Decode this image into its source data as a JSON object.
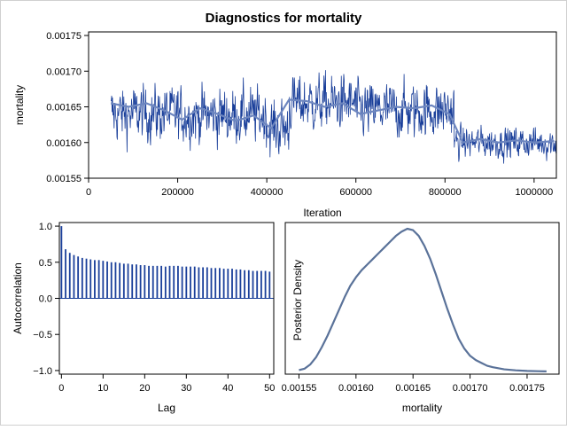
{
  "title": "Diagnostics for mortality",
  "colors": {
    "trace": "#1a3f9a",
    "trace_smooth": "#6d86bf",
    "acf_bar": "#1a3f9a",
    "density": "#5a7299",
    "frame": "#000000"
  },
  "chart_data": [
    {
      "type": "line",
      "name": "trace-plot",
      "xlabel": "Iteration",
      "ylabel": "mortality",
      "xlim": [
        0,
        1050000
      ],
      "ylim": [
        0.00155,
        0.001755
      ],
      "xticks": [
        0,
        200000,
        400000,
        600000,
        800000,
        1000000
      ],
      "xtick_labels": [
        "0",
        "200000",
        "400000",
        "600000",
        "800000",
        "1000000"
      ],
      "yticks": [
        0.00155,
        0.0016,
        0.00165,
        0.0017,
        0.00175
      ],
      "ytick_labels": [
        "0.00155",
        "0.00160",
        "0.00165",
        "0.00170",
        "0.00175"
      ],
      "segments": [
        {
          "from_iter": 50000,
          "to_iter": 200000,
          "mean": 0.00164
        },
        {
          "from_iter": 200000,
          "to_iter": 400000,
          "mean": 0.001638
        },
        {
          "from_iter": 400000,
          "to_iter": 450000,
          "mean": 0.00162
        },
        {
          "from_iter": 450000,
          "to_iter": 600000,
          "mean": 0.001655
        },
        {
          "from_iter": 600000,
          "to_iter": 820000,
          "mean": 0.001645
        },
        {
          "from_iter": 820000,
          "to_iter": 1050000,
          "mean": 0.0016
        }
      ],
      "smooth": {
        "x": [
          50000,
          90000,
          130000,
          170000,
          210000,
          250000,
          290000,
          330000,
          370000,
          410000,
          450000,
          490000,
          530000,
          570000,
          610000,
          650000,
          690000,
          730000,
          770000,
          810000,
          840000,
          880000,
          920000,
          960000,
          1000000,
          1045000
        ],
        "y": [
          0.001655,
          0.00165,
          0.001655,
          0.001645,
          0.001632,
          0.001648,
          0.00164,
          0.00163,
          0.001638,
          0.00162,
          0.00166,
          0.001658,
          0.00165,
          0.001655,
          0.00164,
          0.001645,
          0.00165,
          0.001648,
          0.001652,
          0.00164,
          0.0016,
          0.001605,
          0.0016,
          0.001603,
          0.0016,
          0.001602
        ]
      }
    },
    {
      "type": "bar",
      "name": "autocorrelation-plot",
      "xlabel": "Lag",
      "ylabel": "Autocorrelation",
      "xlim": [
        -0.5,
        51
      ],
      "ylim": [
        -1.05,
        1.05
      ],
      "xticks": [
        0,
        10,
        20,
        30,
        40,
        50
      ],
      "xtick_labels": [
        "0",
        "10",
        "20",
        "30",
        "40",
        "50"
      ],
      "yticks": [
        -1.0,
        -0.5,
        0.0,
        0.5,
        1.0
      ],
      "ytick_labels": [
        "−1.0",
        "−0.5",
        "0.0",
        "0.5",
        "1.0"
      ],
      "lags": [
        0,
        1,
        2,
        3,
        4,
        5,
        6,
        7,
        8,
        9,
        10,
        11,
        12,
        13,
        14,
        15,
        16,
        17,
        18,
        19,
        20,
        21,
        22,
        23,
        24,
        25,
        26,
        27,
        28,
        29,
        30,
        31,
        32,
        33,
        34,
        35,
        36,
        37,
        38,
        39,
        40,
        41,
        42,
        43,
        44,
        45,
        46,
        47,
        48,
        49,
        50
      ],
      "values": [
        1.0,
        0.68,
        0.63,
        0.6,
        0.58,
        0.56,
        0.55,
        0.54,
        0.53,
        0.53,
        0.52,
        0.51,
        0.5,
        0.5,
        0.49,
        0.48,
        0.48,
        0.47,
        0.47,
        0.46,
        0.46,
        0.45,
        0.45,
        0.45,
        0.45,
        0.44,
        0.45,
        0.45,
        0.45,
        0.44,
        0.44,
        0.44,
        0.44,
        0.43,
        0.43,
        0.43,
        0.42,
        0.42,
        0.42,
        0.41,
        0.41,
        0.41,
        0.4,
        0.4,
        0.39,
        0.39,
        0.38,
        0.38,
        0.38,
        0.38,
        0.37
      ]
    },
    {
      "type": "line",
      "name": "posterior-density-plot",
      "xlabel": "mortality",
      "ylabel": "Posterior Density",
      "xlim": [
        0.001538,
        0.001778
      ],
      "xticks": [
        0.00155,
        0.0016,
        0.00165,
        0.0017,
        0.00175
      ],
      "xtick_labels": [
        "0.00155",
        "0.00160",
        "0.00165",
        "0.00170",
        "0.00175"
      ],
      "x": [
        0.00155,
        0.001555,
        0.00156,
        0.001565,
        0.00157,
        0.001575,
        0.00158,
        0.001585,
        0.00159,
        0.001595,
        0.0016,
        0.001605,
        0.00161,
        0.001615,
        0.00162,
        0.001625,
        0.00163,
        0.001635,
        0.00164,
        0.001645,
        0.00165,
        0.001655,
        0.00166,
        0.001665,
        0.00167,
        0.001675,
        0.00168,
        0.001685,
        0.00169,
        0.001695,
        0.0017,
        0.001705,
        0.00171,
        0.001715,
        0.00172,
        0.00173,
        0.00174,
        0.00175,
        0.00176,
        0.001767
      ],
      "y": [
        0.01,
        0.02,
        0.05,
        0.1,
        0.17,
        0.25,
        0.34,
        0.43,
        0.52,
        0.6,
        0.66,
        0.71,
        0.75,
        0.79,
        0.83,
        0.87,
        0.91,
        0.95,
        0.98,
        1.0,
        0.99,
        0.95,
        0.88,
        0.79,
        0.68,
        0.56,
        0.44,
        0.33,
        0.23,
        0.16,
        0.11,
        0.08,
        0.06,
        0.04,
        0.03,
        0.015,
        0.008,
        0.004,
        0.002,
        0.001
      ]
    }
  ]
}
